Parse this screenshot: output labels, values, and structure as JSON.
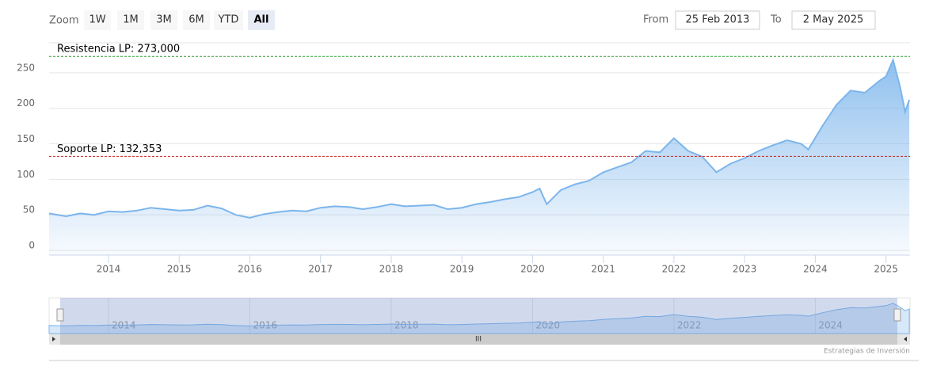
{
  "zoom": {
    "label": "Zoom",
    "buttons": [
      "1W",
      "1M",
      "3M",
      "6M",
      "YTD",
      "All"
    ],
    "selected": 5
  },
  "range": {
    "from_label": "From",
    "from": "25 Feb 2013",
    "to_label": "To",
    "to": "2 May 2025"
  },
  "chart_data": {
    "type": "area",
    "color": "#7cb5ec",
    "x": [
      2013.16,
      2013.4,
      2013.6,
      2013.8,
      2014.0,
      2014.2,
      2014.4,
      2014.6,
      2014.8,
      2015.0,
      2015.2,
      2015.4,
      2015.6,
      2015.8,
      2016.0,
      2016.2,
      2016.4,
      2016.6,
      2016.8,
      2017.0,
      2017.2,
      2017.4,
      2017.6,
      2017.8,
      2018.0,
      2018.2,
      2018.4,
      2018.6,
      2018.8,
      2019.0,
      2019.2,
      2019.4,
      2019.6,
      2019.8,
      2020.0,
      2020.1,
      2020.2,
      2020.4,
      2020.6,
      2020.8,
      2021.0,
      2021.2,
      2021.4,
      2021.6,
      2021.8,
      2022.0,
      2022.2,
      2022.4,
      2022.6,
      2022.8,
      2023.0,
      2023.2,
      2023.4,
      2023.6,
      2023.8,
      2023.9,
      2024.1,
      2024.3,
      2024.5,
      2024.7,
      2024.9,
      2025.0,
      2025.1,
      2025.2,
      2025.27,
      2025.33
    ],
    "values": [
      52,
      48,
      52,
      50,
      55,
      54,
      56,
      60,
      58,
      56,
      57,
      63,
      59,
      50,
      46,
      51,
      54,
      56,
      55,
      60,
      62,
      61,
      58,
      61,
      65,
      62,
      63,
      64,
      58,
      60,
      65,
      68,
      72,
      75,
      82,
      87,
      65,
      85,
      93,
      98,
      110,
      117,
      124,
      140,
      138,
      158,
      140,
      132,
      110,
      122,
      130,
      140,
      148,
      155,
      150,
      142,
      175,
      205,
      225,
      222,
      238,
      245,
      268,
      230,
      195,
      212
    ],
    "xlim": [
      2013.16,
      2025.34
    ],
    "xticks": [
      2014,
      2015,
      2016,
      2017,
      2018,
      2019,
      2020,
      2021,
      2022,
      2023,
      2024,
      2025
    ],
    "ylim": [
      -5,
      290
    ],
    "yticks": [
      0,
      50,
      100,
      150,
      200,
      250
    ],
    "grid": true,
    "plot_lines": [
      {
        "value": 273,
        "label": "Resistencia LP: 273,000",
        "color": "#2e9e2e"
      },
      {
        "value": 132.353,
        "label": "Soporte LP: 132,353",
        "color": "#cc2222"
      }
    ]
  },
  "navigator": {
    "xticks": [
      2014,
      2016,
      2018,
      2020,
      2022,
      2024
    ]
  },
  "credit": "Estrategias de Inversión"
}
